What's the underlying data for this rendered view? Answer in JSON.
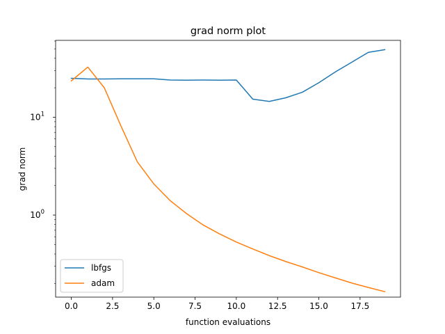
{
  "chart_data": {
    "type": "line",
    "title": "grad norm plot",
    "xlabel": "function evaluations",
    "ylabel": "grad norm",
    "xlim": [
      -0.95,
      19.95
    ],
    "ylim": [
      0.145,
      61
    ],
    "yscale": "log",
    "grid": false,
    "legend_position": "lower-left",
    "x_ticks": [
      0,
      2.5,
      5,
      7.5,
      10,
      12.5,
      15,
      17.5
    ],
    "x_tick_labels": [
      "0.0",
      "2.5",
      "5.0",
      "7.5",
      "10.0",
      "12.5",
      "15.0",
      "17.5"
    ],
    "y_major_ticks": [
      1,
      10
    ],
    "y_tick_labels": [
      {
        "base": "10",
        "exp": "0"
      },
      {
        "base": "10",
        "exp": "1"
      }
    ],
    "x": [
      0,
      1,
      2,
      3,
      4,
      5,
      6,
      7,
      8,
      9,
      10,
      11,
      12,
      13,
      14,
      15,
      16,
      17,
      18,
      19
    ],
    "series": [
      {
        "name": "lbfgs",
        "color": "#1f77b4",
        "values": [
          25.0,
          24.6,
          24.6,
          24.7,
          24.7,
          24.7,
          24.0,
          23.9,
          24.0,
          23.9,
          24.0,
          15.3,
          14.5,
          15.8,
          18.0,
          22.5,
          29.0,
          36.5,
          46.0,
          49.0
        ]
      },
      {
        "name": "adam",
        "color": "#ff7f0e",
        "values": [
          23.5,
          32.5,
          20.0,
          8.2,
          3.5,
          2.08,
          1.4,
          1.03,
          0.79,
          0.64,
          0.53,
          0.45,
          0.385,
          0.335,
          0.295,
          0.258,
          0.228,
          0.202,
          0.182,
          0.165
        ]
      }
    ]
  }
}
